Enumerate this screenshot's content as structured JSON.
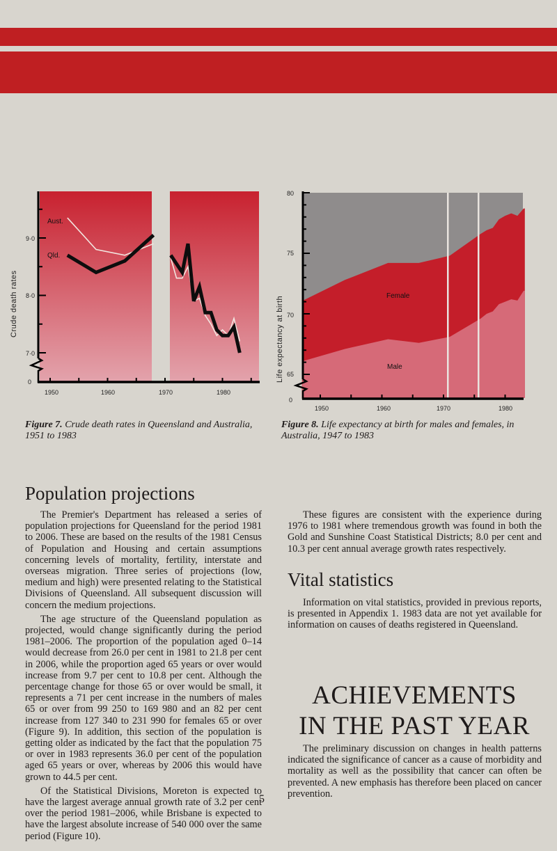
{
  "header_bands": {
    "color": "#bf1f22",
    "background": "#d8d5ce"
  },
  "figure7": {
    "caption_label": "Figure 7.",
    "caption_text": " Crude death rates in Queensland and Australia, 1951 to 1983",
    "ylabel": "Crude death rates",
    "y_ticks": [
      "9·0",
      "8·0",
      "7·0",
      "0"
    ],
    "x_ticks": [
      "1950",
      "1960",
      "1970",
      "1980"
    ],
    "series_labels": {
      "aust": "Aust.",
      "qld": "Qld."
    }
  },
  "figure8": {
    "caption_label": "Figure 8.",
    "caption_text": " Life expectancy at birth for males and females, in Australia, 1947 to 1983",
    "ylabel": "Life expectancy at birth",
    "y_ticks": [
      "80",
      "75",
      "70",
      "65",
      "0"
    ],
    "x_ticks": [
      "1950",
      "1960",
      "1970",
      "1980"
    ],
    "series_labels": {
      "female": "Female",
      "male": "Male"
    }
  },
  "chart_data": [
    {
      "type": "line",
      "title": "Figure 7. Crude death rates in Queensland and Australia, 1951 to 1983",
      "xlabel": "",
      "ylabel": "Crude death rates",
      "ylim": [
        6.5,
        9.8
      ],
      "y_ticks": [
        0,
        7.0,
        8.0,
        9.0
      ],
      "x_ticks": [
        1950,
        1960,
        1970,
        1980
      ],
      "grid": false,
      "legend": "inline labels",
      "series": [
        {
          "name": "Aust.",
          "color": "#f2e6e0",
          "x": [
            1953,
            1958,
            1963,
            1968,
            1971,
            1972,
            1973,
            1974,
            1975,
            1976,
            1977,
            1978,
            1979,
            1980,
            1981,
            1982,
            1983
          ],
          "values": [
            9.35,
            8.8,
            8.7,
            8.9,
            8.65,
            8.3,
            8.3,
            8.5,
            7.9,
            7.95,
            7.65,
            7.5,
            7.3,
            7.4,
            7.3,
            7.6,
            7.2
          ]
        },
        {
          "name": "Qld.",
          "color": "#0d0d0d",
          "x": [
            1953,
            1958,
            1963,
            1968,
            1971,
            1973,
            1974,
            1975,
            1976,
            1977,
            1978,
            1979,
            1980,
            1981,
            1982,
            1983
          ],
          "values": [
            8.7,
            8.4,
            8.6,
            9.05,
            8.7,
            8.4,
            8.9,
            7.9,
            8.15,
            7.7,
            7.7,
            7.4,
            7.3,
            7.3,
            7.45,
            7.0
          ]
        }
      ]
    },
    {
      "type": "area",
      "title": "Figure 8. Life expectancy at birth for males and females, in Australia, 1947 to 1983",
      "xlabel": "",
      "ylabel": "Life expectancy at birth",
      "ylim": [
        63,
        80
      ],
      "y_ticks": [
        0,
        65,
        70,
        75,
        80
      ],
      "x_ticks": [
        1950,
        1960,
        1970,
        1980
      ],
      "grid": false,
      "legend": "inline labels",
      "series": [
        {
          "name": "Female",
          "color": "#c41e2a",
          "x": [
            1947,
            1954,
            1961,
            1966,
            1971,
            1976,
            1977,
            1978,
            1979,
            1980,
            1981,
            1982,
            1983
          ],
          "values": [
            71.1,
            72.8,
            74.2,
            74.2,
            74.8,
            76.6,
            76.9,
            77.1,
            77.8,
            78.1,
            78.3,
            78.1,
            78.7
          ]
        },
        {
          "name": "Male",
          "color": "#d66a78",
          "x": [
            1947,
            1954,
            1961,
            1966,
            1971,
            1976,
            1977,
            1978,
            1979,
            1980,
            1981,
            1982,
            1983
          ],
          "values": [
            66.1,
            67.1,
            67.9,
            67.6,
            68.1,
            69.6,
            70.0,
            70.2,
            70.8,
            71.0,
            71.2,
            71.1,
            71.9
          ]
        }
      ]
    }
  ],
  "population_projections": {
    "heading": "Population projections",
    "paragraphs": [
      "The Premier's Department has released a series of population projections for Queensland for the period 1981 to 2006. These are based on the results of the 1981 Census of Population and Housing and certain assumptions concerning levels of mortality, fertility, interstate and overseas migration. Three series of projections (low, medium and high) were presented relating to the Statistical Divisions of Queensland. All subsequent discussion will concern the medium projections.",
      "The age structure of the Queensland population as projected, would change significantly during the period 1981–2006. The proportion of the population aged 0–14 would decrease from 26.0 per cent in 1981 to 21.8 per cent in 2006, while the proportion aged 65 years or over would increase from 9.7 per cent to 10.8 per cent. Although the percentage change for those 65 or over would be small, it represents a 71 per cent increase in the numbers of males 65 or over from 99 250 to 169 980 and an 82 per cent increase from 127 340 to 231 990 for females 65 or over (Figure 9). In addition, this section of the population is getting older as indicated by the fact that the population 75 or over in 1983 represents 36.0 per cent of the population aged 65 years or over, whereas by 2006 this would have grown to 44.5 per cent.",
      "Of the Statistical Divisions, Moreton is expected to have the largest average annual growth rate of 3.2 per cent over the period 1981–2006, while Brisbane is expected to have the largest absolute increase of 540 000 over the same period (Figure 10)."
    ],
    "continued_paragraph": "These figures are consistent with the experience during 1976 to 1981 where tremendous growth was found in both the Gold and Sunshine Coast Statistical Districts; 8.0 per cent and 10.3 per cent annual average growth rates respectively."
  },
  "vital_statistics": {
    "heading": "Vital statistics",
    "paragraph": "Information on vital statistics, provided in previous reports, is presented in Appendix 1. 1983 data are not yet available for information on causes of deaths registered in Queensland."
  },
  "achievements": {
    "heading_line1": "ACHIEVEMENTS",
    "heading_line2": "IN THE PAST YEAR",
    "paragraph": "The preliminary discussion on changes in health patterns indicated the significance of cancer as a cause of morbidity and mortality as well as the possibility that cancer can often be prevented. A new emphasis has therefore been placed on cancer prevention."
  },
  "page_number": "5"
}
